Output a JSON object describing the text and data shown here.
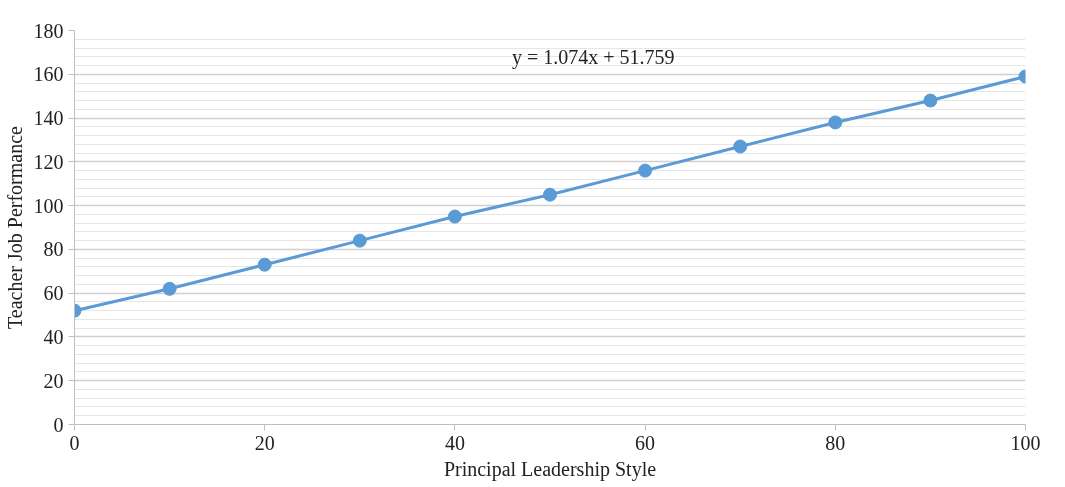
{
  "chart_data": {
    "type": "line",
    "xlabel": "Principal Leadership Style",
    "ylabel": "Teacher Job Performance",
    "x": [
      0,
      10,
      20,
      30,
      40,
      50,
      60,
      70,
      80,
      90,
      100
    ],
    "series": [
      {
        "color": "#5b9bd5",
        "values": [
          52,
          62,
          73,
          84,
          95,
          105,
          116,
          127,
          138,
          148,
          159
        ]
      }
    ],
    "xlim": [
      0,
      100
    ],
    "xticks": [
      0,
      20,
      40,
      60,
      80,
      100
    ],
    "ylim": [
      0,
      180
    ],
    "yticks": [
      0,
      20,
      40,
      60,
      80,
      100,
      120,
      140,
      160,
      180
    ],
    "annotations": [
      "y = 1.074x + 51.759"
    ],
    "grid": "y",
    "marker": "circle",
    "line_style": "solid"
  }
}
